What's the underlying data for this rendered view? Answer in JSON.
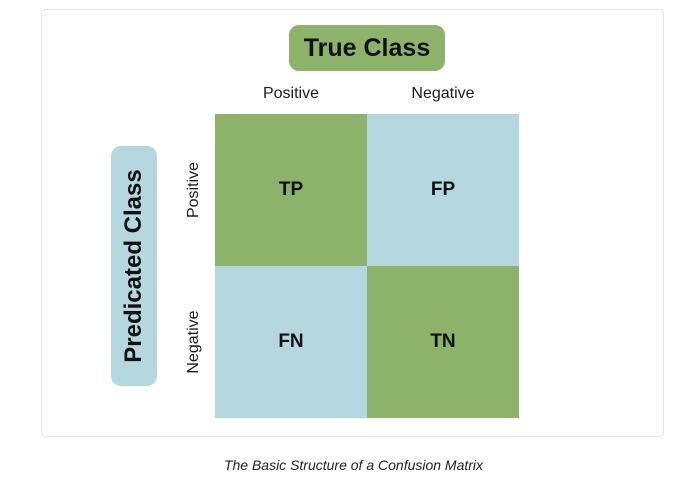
{
  "colors": {
    "green": "#8db36a",
    "blue": "#b5d8e0"
  },
  "header": {
    "title": "True Class",
    "columns": [
      "Positive",
      "Negative"
    ]
  },
  "side": {
    "title": "Predicated Class",
    "rows": [
      "Positive",
      "Negative"
    ]
  },
  "matrix": {
    "cells": [
      {
        "label": "TP",
        "color": "#8db36a"
      },
      {
        "label": "FP",
        "color": "#b5d8e0"
      },
      {
        "label": "FN",
        "color": "#b5d8e0"
      },
      {
        "label": "TN",
        "color": "#8db36a"
      }
    ]
  },
  "caption": "The Basic Structure of a Confusion Matrix"
}
